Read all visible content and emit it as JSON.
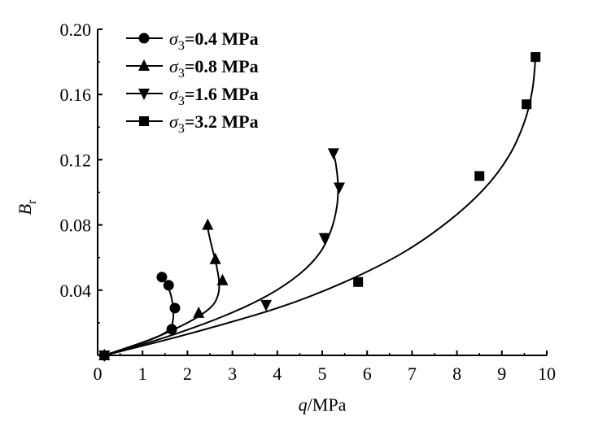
{
  "chart_data": {
    "type": "scatter",
    "title": "",
    "xlabel": {
      "var": "q",
      "unit": "/MPa"
    },
    "ylabel": {
      "var": "B",
      "sub": "r"
    },
    "xlim": [
      0,
      10
    ],
    "ylim": [
      0,
      0.2
    ],
    "x_ticks": [
      "0",
      "1",
      "2",
      "3",
      "4",
      "5",
      "6",
      "7",
      "8",
      "9",
      "10"
    ],
    "y_ticks": [
      "0.04",
      "0.08",
      "0.12",
      "0.16",
      "0.20"
    ],
    "grid": false,
    "legend_position": "top-left",
    "series": [
      {
        "name": "σ3=0.4 MPa",
        "legend": {
          "sym": "σ",
          "sub": "3",
          "rest": "=0.4 MPa"
        },
        "marker": "circle",
        "points": [
          [
            0.15,
            0.0
          ],
          [
            1.65,
            0.016
          ],
          [
            1.72,
            0.029
          ],
          [
            1.58,
            0.043
          ],
          [
            1.43,
            0.048
          ]
        ],
        "curve": [
          [
            0.15,
            0.0
          ],
          [
            0.8,
            0.006
          ],
          [
            1.3,
            0.011
          ],
          [
            1.6,
            0.016
          ],
          [
            1.68,
            0.022
          ],
          [
            1.68,
            0.029
          ],
          [
            1.64,
            0.036
          ],
          [
            1.58,
            0.041
          ],
          [
            1.52,
            0.045
          ]
        ]
      },
      {
        "name": "σ3=0.8 MPa",
        "legend": {
          "sym": "σ",
          "sub": "3",
          "rest": "=0.8 MPa"
        },
        "marker": "triangle-up",
        "points": [
          [
            0.15,
            0.0
          ],
          [
            2.25,
            0.026
          ],
          [
            2.78,
            0.046
          ],
          [
            2.62,
            0.059
          ],
          [
            2.45,
            0.08
          ]
        ],
        "curve": [
          [
            0.15,
            0.0
          ],
          [
            1.2,
            0.01
          ],
          [
            2.0,
            0.02
          ],
          [
            2.5,
            0.029
          ],
          [
            2.68,
            0.037
          ],
          [
            2.7,
            0.046
          ],
          [
            2.63,
            0.057
          ],
          [
            2.53,
            0.068
          ],
          [
            2.45,
            0.078
          ]
        ]
      },
      {
        "name": "σ3=1.6 MPa",
        "legend": {
          "sym": "σ",
          "sub": "3",
          "rest": "=1.6 MPa"
        },
        "marker": "triangle-down",
        "points": [
          [
            0.15,
            0.0
          ],
          [
            3.75,
            0.031
          ],
          [
            5.05,
            0.072
          ],
          [
            5.38,
            0.103
          ],
          [
            5.25,
            0.124
          ]
        ],
        "curve": [
          [
            0.15,
            0.0
          ],
          [
            1.5,
            0.011
          ],
          [
            2.8,
            0.024
          ],
          [
            3.8,
            0.037
          ],
          [
            4.5,
            0.05
          ],
          [
            4.95,
            0.063
          ],
          [
            5.2,
            0.077
          ],
          [
            5.33,
            0.092
          ],
          [
            5.35,
            0.105
          ],
          [
            5.3,
            0.118
          ],
          [
            5.25,
            0.123
          ]
        ]
      },
      {
        "name": "σ3=3.2 MPa",
        "legend": {
          "sym": "σ",
          "sub": "3",
          "rest": "=3.2 MPa"
        },
        "marker": "square",
        "points": [
          [
            0.15,
            0.0
          ],
          [
            5.8,
            0.045
          ],
          [
            8.5,
            0.11
          ],
          [
            9.55,
            0.154
          ],
          [
            9.75,
            0.183
          ]
        ],
        "curve": [
          [
            0.15,
            0.0
          ],
          [
            2.0,
            0.013
          ],
          [
            4.0,
            0.029
          ],
          [
            5.5,
            0.045
          ],
          [
            6.8,
            0.063
          ],
          [
            7.8,
            0.082
          ],
          [
            8.6,
            0.102
          ],
          [
            9.15,
            0.122
          ],
          [
            9.5,
            0.143
          ],
          [
            9.68,
            0.163
          ],
          [
            9.75,
            0.183
          ]
        ]
      }
    ]
  }
}
